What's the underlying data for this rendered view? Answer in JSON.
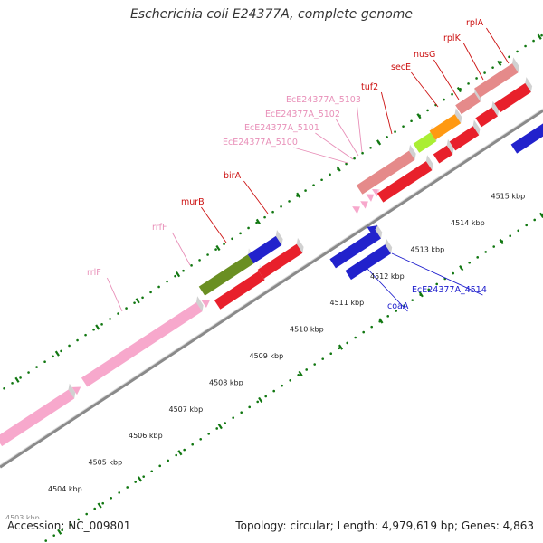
{
  "title": "Escherichia coli E24377A, complete genome",
  "footer": {
    "accession": "Accession: NC_009801",
    "summary": "Topology: circular; Length: 4,979,619 bp; Genes: 4,863"
  },
  "colors": {
    "rRNA": "#f7a8cc",
    "plus_cds": "#e8202b",
    "minus_cds": "#2222cc",
    "muted_red": "#e58a8a",
    "olive": "#6a8f22",
    "lime": "#aaee33",
    "orange": "#ff9912",
    "label_red": "#cc1111",
    "label_pink": "#e88fb8",
    "label_blue": "#1a1acc",
    "tick_green": "#117711",
    "backbone": "#a8a8a8"
  },
  "kbp_labels": [
    "4504 kbp",
    "4505 kbp",
    "4506 kbp",
    "4507 kbp",
    "4508 kbp",
    "4509 kbp",
    "4510 kbp",
    "4511 kbp",
    "4512 kbp",
    "4513 kbp",
    "4514 kbp",
    "4515 kbp"
  ],
  "partial_kbp_label": "4503 kbp",
  "genes": [
    {
      "label": "rrlF",
      "color": "label_pink"
    },
    {
      "label": "rrfF",
      "color": "label_pink"
    },
    {
      "label": "murB",
      "color": "label_red"
    },
    {
      "label": "birA",
      "color": "label_red"
    },
    {
      "label": "EcE24377A_5100",
      "color": "label_pink"
    },
    {
      "label": "EcE24377A_5101",
      "color": "label_pink"
    },
    {
      "label": "EcE24377A_5102",
      "color": "label_pink"
    },
    {
      "label": "EcE24377A_5103",
      "color": "label_pink"
    },
    {
      "label": "tuf2",
      "color": "label_red"
    },
    {
      "label": "secE",
      "color": "label_red"
    },
    {
      "label": "nusG",
      "color": "label_red"
    },
    {
      "label": "rplK",
      "color": "label_red"
    },
    {
      "label": "rplA",
      "color": "label_red"
    },
    {
      "label": "coaA",
      "color": "label_blue"
    },
    {
      "label": "EcE24377A_4514",
      "color": "label_blue"
    }
  ]
}
